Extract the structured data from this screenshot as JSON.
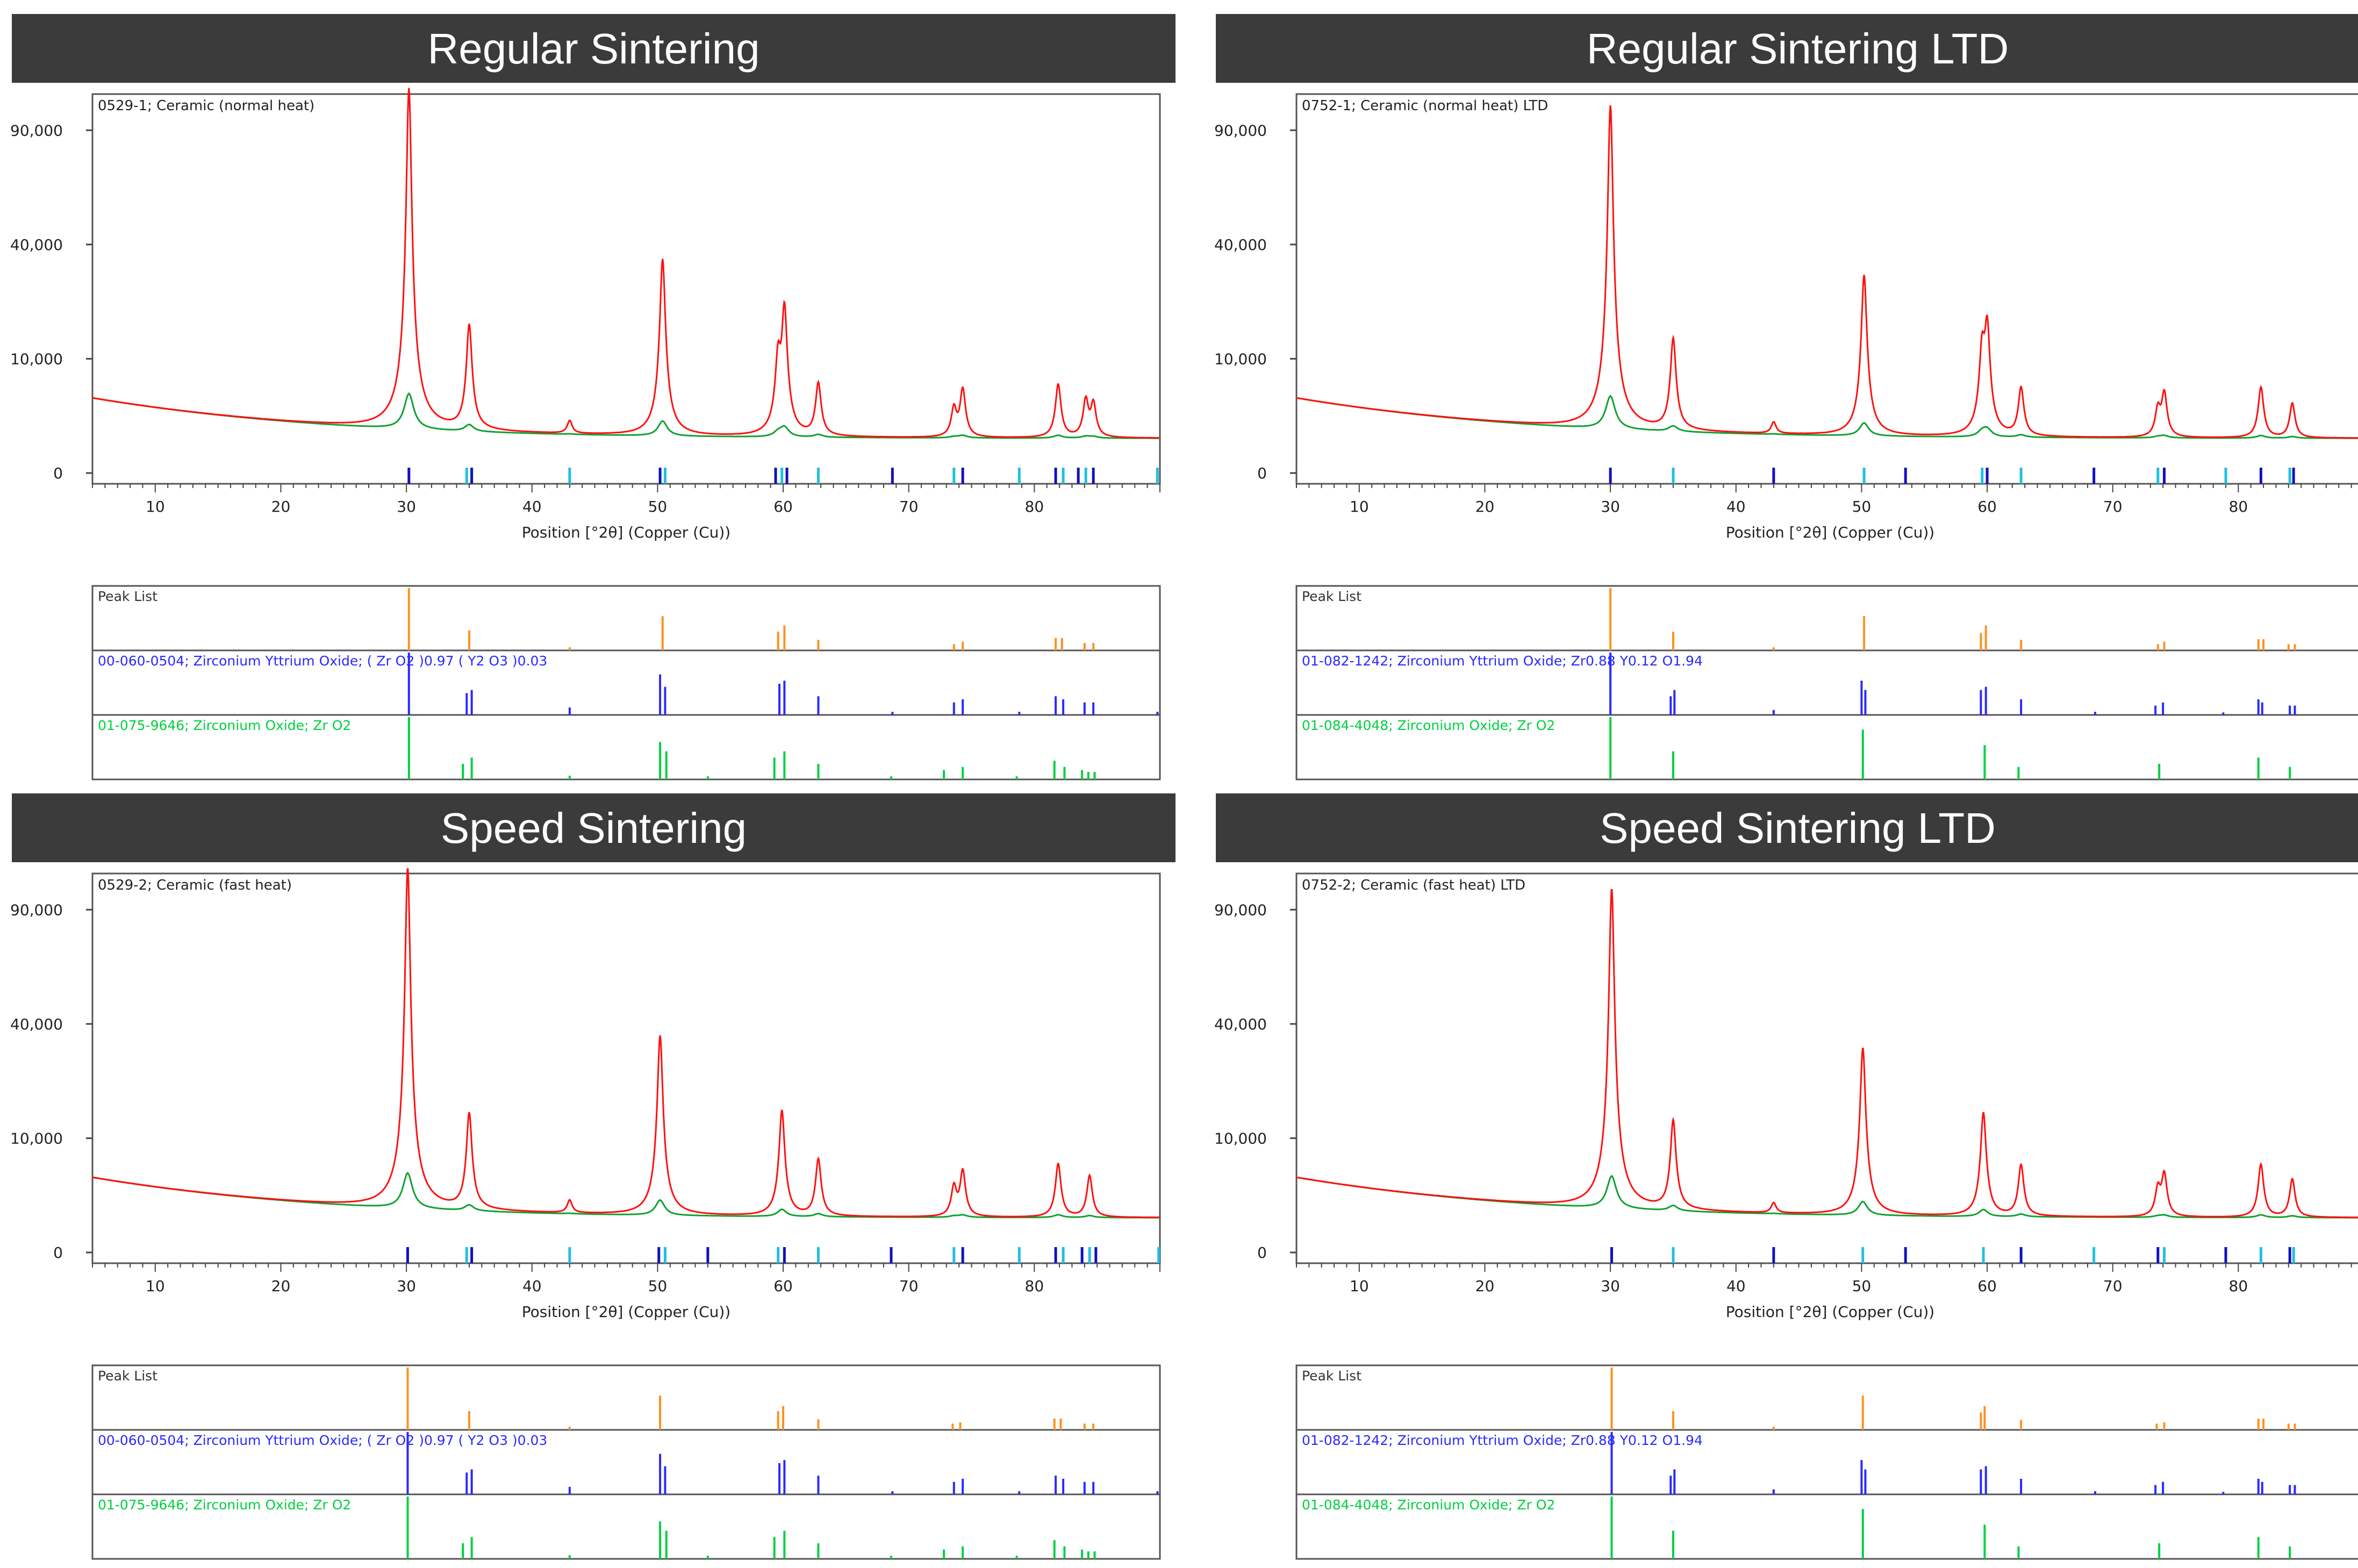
{
  "chart_data": [
    {
      "type": "line",
      "panel_title": "Regular Sintering",
      "plot_label": "0529-1; Ceramic (normal heat)",
      "xlabel": "Position [°2θ] (Copper (Cu))",
      "x_ticks": [
        "10",
        "20",
        "30",
        "40",
        "50",
        "60",
        "70",
        "80"
      ],
      "y_ticks": [
        "0",
        "10,000",
        "40,000",
        "90,000"
      ],
      "xlim": [
        5,
        90
      ],
      "y_scale": "sqrt",
      "ylim": [
        0,
        110000
      ],
      "background": {
        "start": 4200,
        "mid": 1400,
        "end": 800
      },
      "peaks": [
        [
          30.2,
          112000
        ],
        [
          35.0,
          15500
        ],
        [
          43.0,
          900
        ],
        [
          50.4,
          34000
        ],
        [
          59.6,
          9000
        ],
        [
          60.1,
          20000
        ],
        [
          62.8,
          5200
        ],
        [
          73.6,
          2300
        ],
        [
          74.3,
          4500
        ],
        [
          81.9,
          5100
        ],
        [
          84.1,
          3200
        ],
        [
          84.7,
          2800
        ]
      ],
      "ref_marks": [
        30.2,
        34.8,
        35.2,
        43.0,
        50.2,
        50.6,
        59.4,
        59.9,
        60.3,
        62.8,
        68.7,
        73.6,
        74.3,
        78.8,
        81.7,
        82.3,
        83.5,
        84.1,
        84.7,
        89.8
      ],
      "peak_list_label": "Peak List",
      "peak_list": [
        [
          30.2,
          1.0
        ],
        [
          35.0,
          0.32
        ],
        [
          43.0,
          0.05
        ],
        [
          50.4,
          0.55
        ],
        [
          59.6,
          0.3
        ],
        [
          60.1,
          0.4
        ],
        [
          62.8,
          0.17
        ],
        [
          73.6,
          0.1
        ],
        [
          74.3,
          0.14
        ],
        [
          81.7,
          0.2
        ],
        [
          82.2,
          0.2
        ],
        [
          84.0,
          0.12
        ],
        [
          84.7,
          0.12
        ]
      ],
      "ref_patterns": [
        {
          "label": "00-060-0504; Zirconium Yttrium Oxide; ( Zr O2 )0.97 ( Y2 O3 )0.03",
          "color": "#2a2aff",
          "sticks": [
            [
              30.2,
              1.0
            ],
            [
              34.8,
              0.35
            ],
            [
              35.2,
              0.4
            ],
            [
              43.0,
              0.12
            ],
            [
              50.2,
              0.65
            ],
            [
              50.6,
              0.45
            ],
            [
              59.7,
              0.5
            ],
            [
              60.1,
              0.55
            ],
            [
              62.8,
              0.3
            ],
            [
              68.7,
              0.05
            ],
            [
              73.6,
              0.2
            ],
            [
              74.3,
              0.25
            ],
            [
              78.8,
              0.05
            ],
            [
              81.7,
              0.3
            ],
            [
              82.3,
              0.25
            ],
            [
              84.0,
              0.2
            ],
            [
              84.7,
              0.2
            ],
            [
              89.8,
              0.05
            ]
          ]
        },
        {
          "label": "01-075-9646; Zirconium Oxide; Zr O2",
          "color": "#00d040",
          "sticks": [
            [
              30.2,
              1.0
            ],
            [
              34.5,
              0.25
            ],
            [
              35.2,
              0.35
            ],
            [
              43.0,
              0.06
            ],
            [
              50.2,
              0.6
            ],
            [
              50.7,
              0.45
            ],
            [
              54.0,
              0.05
            ],
            [
              59.3,
              0.35
            ],
            [
              60.1,
              0.45
            ],
            [
              62.8,
              0.25
            ],
            [
              68.6,
              0.05
            ],
            [
              72.8,
              0.15
            ],
            [
              74.3,
              0.2
            ],
            [
              78.6,
              0.05
            ],
            [
              81.6,
              0.3
            ],
            [
              82.4,
              0.2
            ],
            [
              83.8,
              0.15
            ],
            [
              84.3,
              0.12
            ],
            [
              84.8,
              0.12
            ]
          ]
        }
      ]
    },
    {
      "type": "line",
      "panel_title": "Regular Sintering LTD",
      "plot_label": "0752-1; Ceramic (normal heat) LTD",
      "xlabel": "Position [°2θ] (Copper (Cu))",
      "x_ticks": [
        "10",
        "20",
        "30",
        "40",
        "50",
        "60",
        "70",
        "80"
      ],
      "y_ticks": [
        "0",
        "10,000",
        "40,000",
        "90,000"
      ],
      "xlim": [
        5,
        90
      ],
      "y_scale": "sqrt",
      "ylim": [
        0,
        110000
      ],
      "background": {
        "start": 4200,
        "mid": 1400,
        "end": 800
      },
      "peaks": [
        [
          30.0,
          102000
        ],
        [
          35.0,
          12500
        ],
        [
          43.0,
          800
        ],
        [
          50.2,
          29000
        ],
        [
          59.6,
          10500
        ],
        [
          60.0,
          15500
        ],
        [
          62.7,
          4600
        ],
        [
          73.6,
          2200
        ],
        [
          74.1,
          4000
        ],
        [
          81.8,
          4700
        ],
        [
          84.3,
          2800
        ]
      ],
      "ref_marks": [
        30.0,
        35.0,
        43.0,
        50.2,
        53.5,
        59.6,
        60.0,
        62.7,
        68.5,
        73.6,
        74.1,
        79.0,
        81.8,
        84.1,
        84.4,
        89.9
      ],
      "peak_list_label": "Peak List",
      "peak_list": [
        [
          30.0,
          1.0
        ],
        [
          35.0,
          0.3
        ],
        [
          43.0,
          0.05
        ],
        [
          50.2,
          0.55
        ],
        [
          59.5,
          0.28
        ],
        [
          59.9,
          0.4
        ],
        [
          62.7,
          0.17
        ],
        [
          73.6,
          0.1
        ],
        [
          74.1,
          0.14
        ],
        [
          81.6,
          0.18
        ],
        [
          82.0,
          0.18
        ],
        [
          84.0,
          0.1
        ],
        [
          84.5,
          0.1
        ]
      ],
      "ref_patterns": [
        {
          "label": "01-082-1242; Zirconium Yttrium Oxide; Zr0.88 Y0.12 O1.94",
          "color": "#2a2aff",
          "sticks": [
            [
              30.0,
              1.0
            ],
            [
              34.8,
              0.3
            ],
            [
              35.1,
              0.4
            ],
            [
              43.0,
              0.08
            ],
            [
              50.0,
              0.55
            ],
            [
              50.3,
              0.4
            ],
            [
              59.5,
              0.4
            ],
            [
              59.9,
              0.45
            ],
            [
              62.7,
              0.25
            ],
            [
              68.6,
              0.05
            ],
            [
              73.4,
              0.15
            ],
            [
              74.0,
              0.2
            ],
            [
              78.8,
              0.04
            ],
            [
              81.6,
              0.25
            ],
            [
              81.9,
              0.2
            ],
            [
              84.1,
              0.15
            ],
            [
              84.5,
              0.15
            ],
            [
              89.8,
              0.05
            ]
          ]
        },
        {
          "label": "01-084-4048; Zirconium Oxide; Zr O2",
          "color": "#00d040",
          "sticks": [
            [
              30.0,
              1.0
            ],
            [
              35.0,
              0.45
            ],
            [
              50.1,
              0.8
            ],
            [
              59.8,
              0.55
            ],
            [
              62.5,
              0.2
            ],
            [
              73.7,
              0.25
            ],
            [
              81.6,
              0.35
            ],
            [
              84.1,
              0.2
            ]
          ]
        }
      ]
    },
    {
      "type": "line",
      "panel_title": "Speed Sintering",
      "plot_label": "0529-2; Ceramic (fast heat)",
      "xlabel": "Position [°2θ] (Copper (Cu))",
      "x_ticks": [
        "10",
        "20",
        "30",
        "40",
        "50",
        "60",
        "70",
        "80"
      ],
      "y_ticks": [
        "0",
        "10,000",
        "40,000",
        "90,000"
      ],
      "xlim": [
        5,
        90
      ],
      "y_scale": "sqrt",
      "ylim": [
        0,
        110000
      ],
      "background": {
        "start": 4200,
        "mid": 1400,
        "end": 800
      },
      "peaks": [
        [
          30.1,
          112000
        ],
        [
          35.0,
          13500
        ],
        [
          43.0,
          900
        ],
        [
          50.2,
          35000
        ],
        [
          59.9,
          14500
        ],
        [
          62.8,
          5700
        ],
        [
          73.6,
          2400
        ],
        [
          74.3,
          4200
        ],
        [
          81.9,
          5100
        ],
        [
          84.4,
          3600
        ]
      ],
      "ref_marks": [
        30.1,
        34.8,
        35.2,
        43.0,
        50.1,
        50.6,
        54.0,
        59.6,
        60.1,
        62.8,
        68.6,
        73.6,
        74.3,
        78.8,
        81.7,
        82.3,
        83.8,
        84.4,
        84.9,
        89.9
      ],
      "peak_list_label": "Peak List",
      "peak_list": [
        [
          30.1,
          1.0
        ],
        [
          35.0,
          0.3
        ],
        [
          43.0,
          0.05
        ],
        [
          50.2,
          0.55
        ],
        [
          59.6,
          0.3
        ],
        [
          60.0,
          0.38
        ],
        [
          62.8,
          0.17
        ],
        [
          73.5,
          0.1
        ],
        [
          74.1,
          0.12
        ],
        [
          81.6,
          0.18
        ],
        [
          82.1,
          0.18
        ],
        [
          84.0,
          0.1
        ],
        [
          84.7,
          0.1
        ]
      ],
      "ref_patterns": [
        {
          "label": "00-060-0504; Zirconium Yttrium Oxide; ( Zr O2 )0.97 ( Y2 O3 )0.03",
          "color": "#2a2aff",
          "sticks": [
            [
              30.1,
              1.0
            ],
            [
              34.8,
              0.35
            ],
            [
              35.2,
              0.4
            ],
            [
              43.0,
              0.12
            ],
            [
              50.2,
              0.65
            ],
            [
              50.6,
              0.45
            ],
            [
              59.7,
              0.5
            ],
            [
              60.1,
              0.55
            ],
            [
              62.8,
              0.3
            ],
            [
              68.7,
              0.05
            ],
            [
              73.6,
              0.2
            ],
            [
              74.3,
              0.25
            ],
            [
              78.8,
              0.05
            ],
            [
              81.7,
              0.3
            ],
            [
              82.3,
              0.25
            ],
            [
              84.0,
              0.2
            ],
            [
              84.7,
              0.2
            ],
            [
              89.8,
              0.05
            ]
          ]
        },
        {
          "label": "01-075-9646; Zirconium Oxide; Zr O2",
          "color": "#00d040",
          "sticks": [
            [
              30.1,
              1.0
            ],
            [
              34.5,
              0.25
            ],
            [
              35.2,
              0.35
            ],
            [
              43.0,
              0.06
            ],
            [
              50.2,
              0.6
            ],
            [
              50.7,
              0.45
            ],
            [
              54.0,
              0.05
            ],
            [
              59.3,
              0.35
            ],
            [
              60.1,
              0.45
            ],
            [
              62.8,
              0.25
            ],
            [
              68.6,
              0.05
            ],
            [
              72.8,
              0.15
            ],
            [
              74.3,
              0.2
            ],
            [
              78.6,
              0.05
            ],
            [
              81.6,
              0.3
            ],
            [
              82.4,
              0.2
            ],
            [
              83.8,
              0.15
            ],
            [
              84.3,
              0.12
            ],
            [
              84.8,
              0.12
            ]
          ]
        }
      ]
    },
    {
      "type": "line",
      "panel_title": "Speed Sintering LTD",
      "plot_label": "0752-2; Ceramic (fast heat) LTD",
      "xlabel": "Position [°2θ] (Copper (Cu))",
      "x_ticks": [
        "10",
        "20",
        "30",
        "40",
        "50",
        "60",
        "70",
        "80"
      ],
      "y_ticks": [
        "0",
        "10,000",
        "40,000",
        "90,000"
      ],
      "xlim": [
        5,
        90
      ],
      "y_scale": "sqrt",
      "ylim": [
        0,
        110000
      ],
      "background": {
        "start": 4200,
        "mid": 1400,
        "end": 800
      },
      "peaks": [
        [
          30.1,
          100000
        ],
        [
          35.0,
          12000
        ],
        [
          43.0,
          700
        ],
        [
          50.1,
          31000
        ],
        [
          59.7,
          14000
        ],
        [
          62.7,
          4900
        ],
        [
          73.6,
          2200
        ],
        [
          74.1,
          3800
        ],
        [
          81.8,
          5000
        ],
        [
          84.3,
          3200
        ]
      ],
      "ref_marks": [
        30.1,
        35.0,
        43.0,
        50.1,
        53.5,
        59.7,
        62.7,
        68.5,
        73.6,
        74.1,
        79.0,
        81.8,
        84.1,
        84.4,
        89.9
      ],
      "peak_list_label": "Peak List",
      "peak_list": [
        [
          30.1,
          1.0
        ],
        [
          35.0,
          0.3
        ],
        [
          43.0,
          0.05
        ],
        [
          50.1,
          0.55
        ],
        [
          59.5,
          0.28
        ],
        [
          59.8,
          0.38
        ],
        [
          62.7,
          0.16
        ],
        [
          73.5,
          0.1
        ],
        [
          74.1,
          0.12
        ],
        [
          81.6,
          0.18
        ],
        [
          82.0,
          0.18
        ],
        [
          84.0,
          0.1
        ],
        [
          84.5,
          0.1
        ]
      ],
      "ref_patterns": [
        {
          "label": "01-082-1242; Zirconium Yttrium Oxide; Zr0.88 Y0.12 O1.94",
          "color": "#2a2aff",
          "sticks": [
            [
              30.1,
              1.0
            ],
            [
              34.8,
              0.3
            ],
            [
              35.1,
              0.4
            ],
            [
              43.0,
              0.08
            ],
            [
              50.0,
              0.55
            ],
            [
              50.3,
              0.4
            ],
            [
              59.5,
              0.4
            ],
            [
              59.9,
              0.45
            ],
            [
              62.7,
              0.25
            ],
            [
              68.6,
              0.05
            ],
            [
              73.4,
              0.15
            ],
            [
              74.0,
              0.2
            ],
            [
              78.8,
              0.04
            ],
            [
              81.6,
              0.25
            ],
            [
              81.9,
              0.2
            ],
            [
              84.1,
              0.15
            ],
            [
              84.5,
              0.15
            ],
            [
              89.8,
              0.05
            ]
          ]
        },
        {
          "label": "01-084-4048; Zirconium Oxide; Zr O2",
          "color": "#00d040",
          "sticks": [
            [
              30.1,
              1.0
            ],
            [
              35.0,
              0.45
            ],
            [
              50.1,
              0.8
            ],
            [
              59.8,
              0.55
            ],
            [
              62.5,
              0.2
            ],
            [
              73.7,
              0.25
            ],
            [
              81.6,
              0.35
            ],
            [
              84.1,
              0.2
            ]
          ]
        }
      ]
    }
  ],
  "colors": {
    "header_bg": "#3b3b3b",
    "header_text": "#ffffff",
    "measured": "#ff1010",
    "calculated": "#10a030",
    "peak_list": "#ff9020",
    "ref_mark_blue": "#1010c0",
    "ref_mark_cyan": "#20c0e0"
  }
}
